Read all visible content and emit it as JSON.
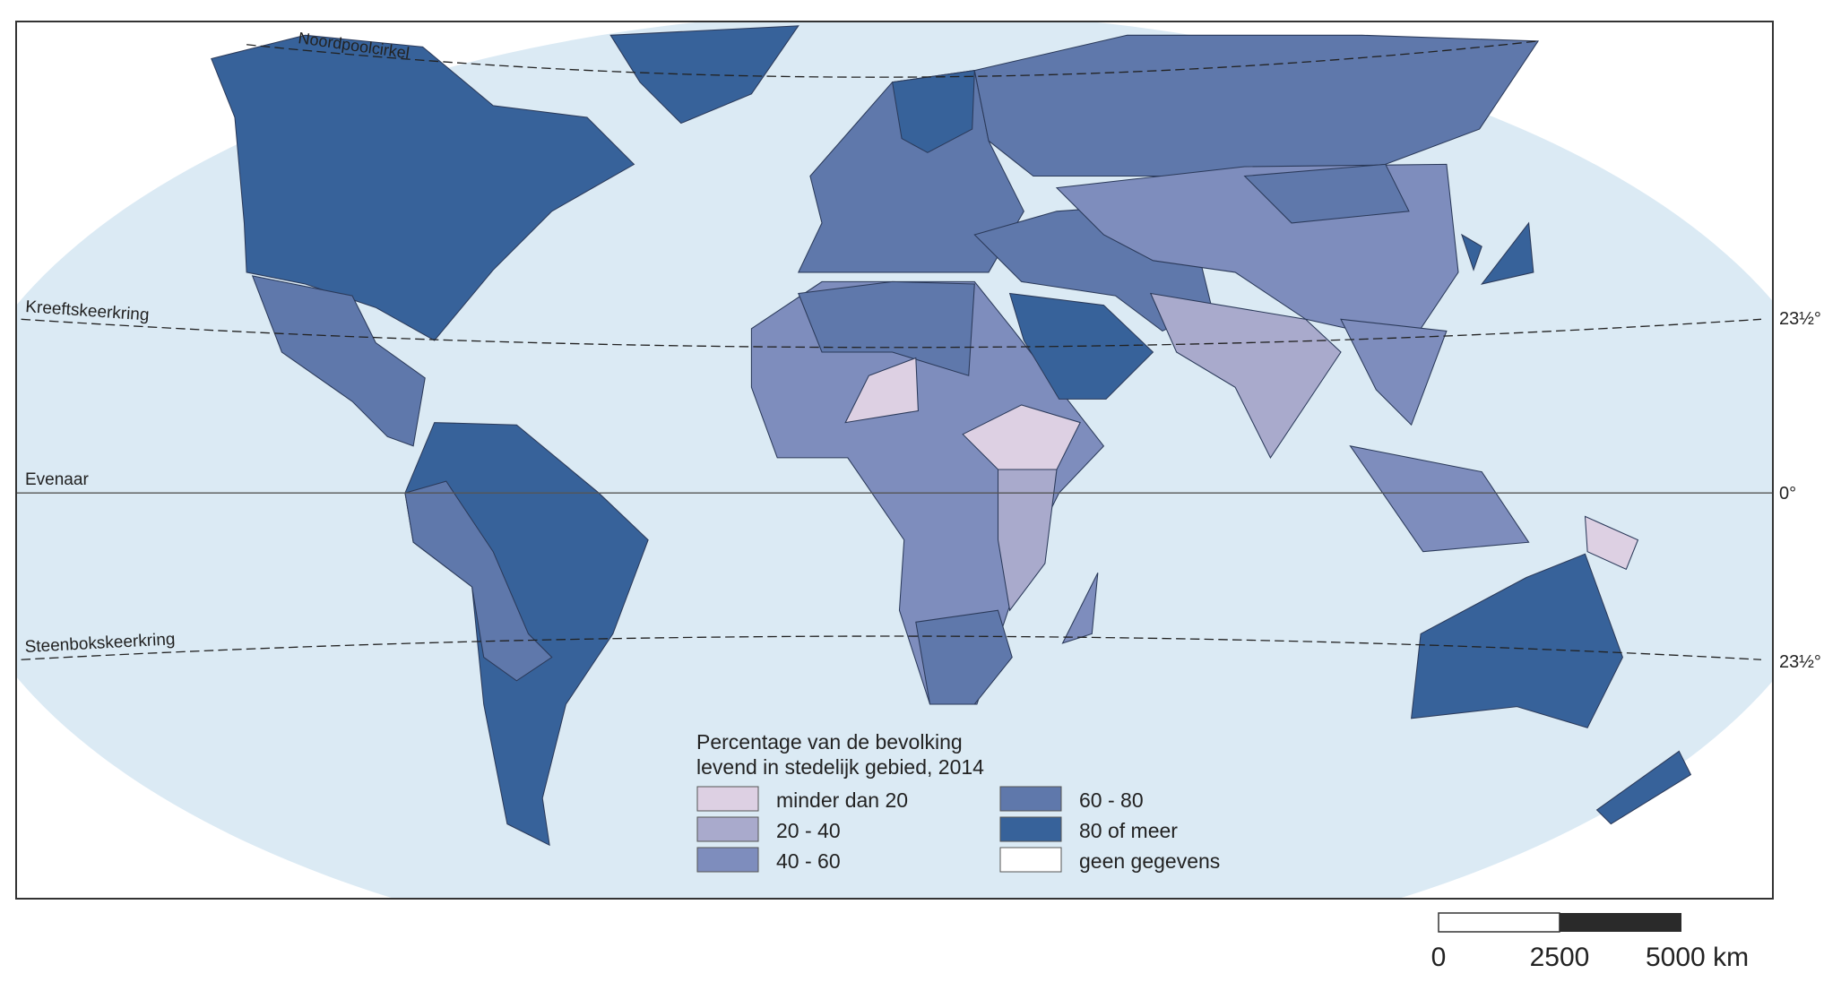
{
  "map": {
    "lines": {
      "arctic_circle": "Noordpoolcirkel",
      "tropic_cancer": "Kreeftskeerkring",
      "equator": "Evenaar",
      "tropic_capricorn": "Steenbokskeerkring"
    },
    "latitude_labels": {
      "tropic_cancer": "23½°",
      "equator": "0°",
      "tropic_capricorn": "23½°"
    },
    "colors": {
      "ocean": "#dbeaf4",
      "frame": "#333333"
    }
  },
  "legend": {
    "title_line1": "Percentage van de bevolking",
    "title_line2": "levend in stedelijk gebied, 2014",
    "classes": [
      {
        "label": "minder dan 20",
        "color": "#ddd0e3"
      },
      {
        "label": "20 - 40",
        "color": "#a9aacc"
      },
      {
        "label": "40 - 60",
        "color": "#7e8dbd"
      },
      {
        "label": "60 - 80",
        "color": "#5f78ab"
      },
      {
        "label": "80 of meer",
        "color": "#37629a"
      },
      {
        "label": "geen gegevens",
        "color": "#ffffff"
      }
    ]
  },
  "scale_bar": {
    "labels": [
      "0",
      "2500",
      "5000 km"
    ]
  }
}
